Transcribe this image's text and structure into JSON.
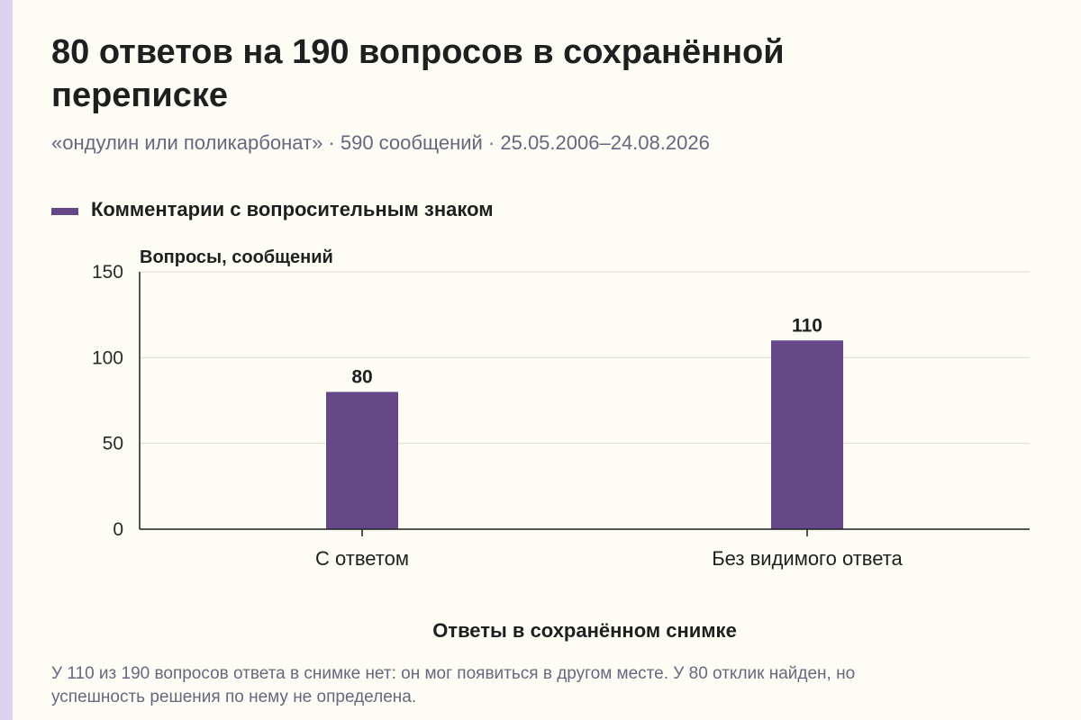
{
  "header": {
    "title": "80 ответов на 190 вопросов в сохранённой переписке",
    "subtitle": "«ондулин или поликарбонат» · 590 сообщений · 25.05.2006–24.08.2026"
  },
  "legend": {
    "label": "Комментарии с вопросительным знаком",
    "color": "#664888"
  },
  "note": "У 110 из 190 вопросов ответа в снимке нет: он мог появиться в другом месте. У 80 отклик найден, но успешность решения по нему не определена.",
  "chart_data": {
    "type": "bar",
    "categories": [
      "С ответом",
      "Без видимого ответа"
    ],
    "values": [
      80,
      110
    ],
    "data_labels": [
      "80",
      "110"
    ],
    "ylabel": "Вопросы, сообщений",
    "xlabel": "Ответы в сохранённом снимке",
    "ylim": [
      0,
      150
    ],
    "yticks": [
      0,
      50,
      100,
      150
    ],
    "grid": true,
    "legend_position": "top-left",
    "bar_color": "#664888"
  }
}
